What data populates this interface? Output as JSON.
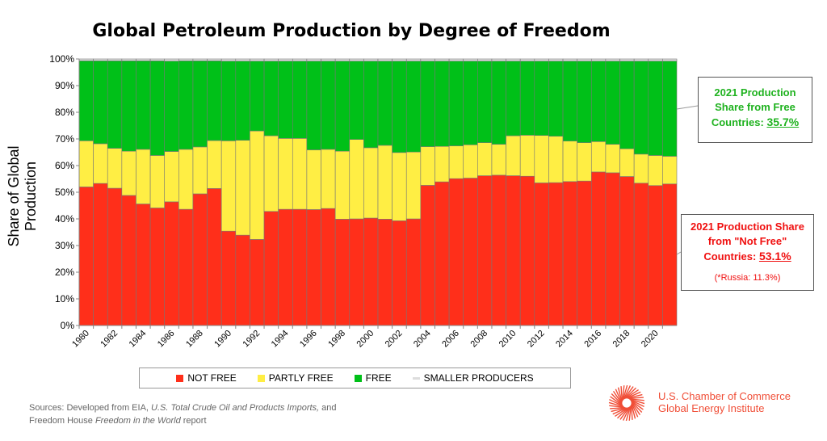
{
  "chart_data": {
    "type": "bar",
    "stacked": true,
    "title": "Global Petroleum Production by Degree of Freedom",
    "ylabel": "Share of Global Production",
    "xlabel": "",
    "ylim": [
      0,
      100
    ],
    "y_ticks": [
      "0%",
      "10%",
      "20%",
      "30%",
      "40%",
      "50%",
      "60%",
      "70%",
      "80%",
      "90%",
      "100%"
    ],
    "x_tick_labels": [
      "1980",
      "1982",
      "1984",
      "1986",
      "1988",
      "1990",
      "1992",
      "1994",
      "1996",
      "1998",
      "2000",
      "2002",
      "2004",
      "2006",
      "2008",
      "2010",
      "2012",
      "2014",
      "2016",
      "2018",
      "2020"
    ],
    "categories": [
      "1980",
      "1981",
      "1982",
      "1983",
      "1984",
      "1985",
      "1986",
      "1987",
      "1988",
      "1989",
      "1990",
      "1991",
      "1992",
      "1993",
      "1994",
      "1995",
      "1996",
      "1997",
      "1998",
      "1999",
      "2000",
      "2001",
      "2002",
      "2003",
      "2004",
      "2005",
      "2006",
      "2007",
      "2008",
      "2009",
      "2010",
      "2011",
      "2012",
      "2013",
      "2014",
      "2015",
      "2016",
      "2017",
      "2018",
      "2019",
      "2020",
      "2021"
    ],
    "series": [
      {
        "name": "NOT FREE",
        "color": "#ff2f1a",
        "values": [
          52.0,
          53.3,
          51.5,
          48.8,
          45.6,
          44.1,
          46.4,
          43.6,
          49.4,
          51.4,
          35.4,
          33.9,
          32.3,
          42.8,
          43.6,
          43.6,
          43.5,
          43.9,
          39.9,
          40.0,
          40.3,
          39.9,
          39.3,
          40.0,
          52.6,
          53.9,
          55.1,
          55.3,
          56.2,
          56.4,
          56.2,
          56.0,
          53.5,
          53.6,
          54.0,
          54.2,
          57.6,
          57.3,
          55.9,
          53.4,
          52.5,
          53.1
        ]
      },
      {
        "name": "PARTLY FREE",
        "color": "#ffee44",
        "values": [
          17.3,
          14.9,
          15.0,
          16.6,
          20.5,
          19.7,
          18.9,
          22.5,
          17.6,
          18.0,
          33.9,
          35.6,
          40.7,
          28.4,
          26.6,
          26.6,
          22.4,
          22.2,
          25.5,
          29.8,
          26.4,
          27.7,
          25.6,
          25.1,
          14.5,
          13.3,
          12.3,
          12.5,
          12.4,
          11.6,
          15.0,
          15.4,
          17.8,
          17.4,
          15.2,
          14.4,
          11.4,
          10.7,
          10.4,
          10.9,
          11.3,
          10.4
        ]
      },
      {
        "name": "FREE",
        "color": "#00c018",
        "values": [
          30.0,
          31.1,
          32.8,
          33.9,
          33.2,
          35.5,
          33.9,
          33.2,
          32.3,
          29.9,
          29.9,
          29.7,
          26.2,
          28.0,
          29.0,
          29.0,
          33.3,
          33.1,
          33.8,
          29.4,
          32.5,
          31.6,
          34.3,
          34.1,
          32.1,
          32.0,
          31.8,
          31.4,
          30.6,
          31.2,
          28.0,
          27.8,
          27.9,
          28.2,
          30.0,
          30.6,
          30.2,
          31.2,
          32.9,
          34.9,
          35.4,
          35.7
        ]
      },
      {
        "name": "SMALLER PRODUCERS",
        "color": "#dddddd",
        "values": [
          0.7,
          0.7,
          0.7,
          0.7,
          0.7,
          0.7,
          0.8,
          0.7,
          0.7,
          0.7,
          0.8,
          0.8,
          0.8,
          0.8,
          0.8,
          0.8,
          0.8,
          0.8,
          0.8,
          0.8,
          0.8,
          0.8,
          0.8,
          0.8,
          0.8,
          0.8,
          0.8,
          0.8,
          0.8,
          0.8,
          0.8,
          0.8,
          0.8,
          0.8,
          0.8,
          0.8,
          0.8,
          0.8,
          0.8,
          0.8,
          0.8,
          0.8
        ]
      }
    ],
    "legend_position": "bottom",
    "grid": false
  },
  "annotations": {
    "free": {
      "line1": "2021 Production",
      "line2": "Share from Free",
      "line3": "Countries: ",
      "value": "35.7%"
    },
    "not_free": {
      "line1": "2021 Production Share",
      "line2": "from \"Not Free\"",
      "line3": "Countries: ",
      "value": "53.1%",
      "note": "(*Russia: 11.3%)"
    }
  },
  "sources": {
    "prefix": "Sources:",
    "part1": " Developed from EIA, ",
    "italic1": "U.S. Total Crude Oil and Products Imports,",
    "part2": " and",
    "part3": "Freedom House ",
    "italic2": "Freedom in the World",
    "part4": " report"
  },
  "logo": {
    "line1": "U.S. Chamber of Commerce",
    "line2": "Global Energy Institute",
    "color": "#f04e37"
  }
}
